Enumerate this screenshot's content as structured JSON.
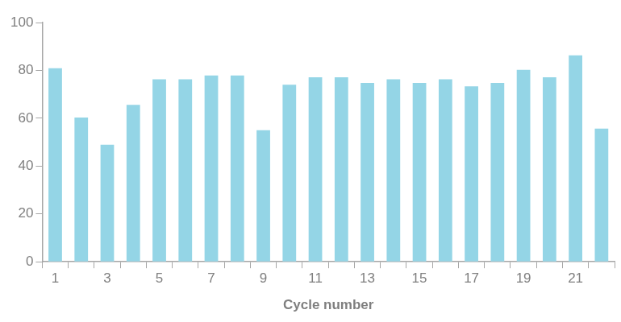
{
  "chart_data": {
    "type": "bar",
    "x_label": "Cycle number",
    "categories": [
      "1",
      null,
      "3",
      null,
      "5",
      null,
      "7",
      null,
      "9",
      null,
      "11",
      null,
      "13",
      null,
      "15",
      null,
      "17",
      null,
      "19",
      null,
      "21",
      null
    ],
    "values": [
      80.9,
      60.3,
      48.9,
      65.6,
      76.3,
      76.3,
      77.9,
      77.9,
      55.0,
      74.0,
      77.1,
      77.1,
      74.8,
      76.3,
      74.8,
      76.3,
      73.3,
      74.8,
      80.2,
      77.1,
      86.3,
      55.7
    ],
    "color": "#94d5e6",
    "ylim": [
      0,
      100
    ],
    "yticks": [
      0,
      20,
      40,
      60,
      80,
      100
    ],
    "grid": false
  }
}
